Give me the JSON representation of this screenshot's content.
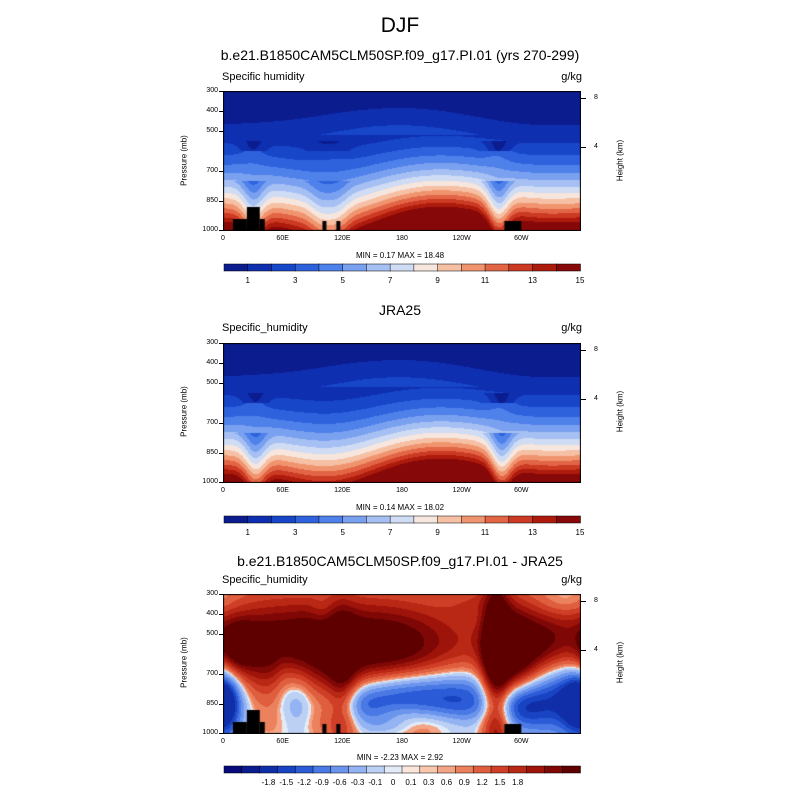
{
  "figure": {
    "title": "DJF"
  },
  "colors": {
    "palette_15": [
      "#0b1c8f",
      "#0e2fb0",
      "#1846c9",
      "#2e62dd",
      "#4f81ea",
      "#7aa0f0",
      "#a6c0f3",
      "#d0dcf3",
      "#f6e6de",
      "#f6c0a4",
      "#f0946f",
      "#e26546",
      "#cc3a23",
      "#ad1b0d",
      "#870808"
    ],
    "palette_20": [
      "#070a78",
      "#0b1c8f",
      "#0f2ea8",
      "#1843c2",
      "#2b5bd6",
      "#4a78e4",
      "#6b95ed",
      "#93b3f2",
      "#bcd0f4",
      "#e2ebf7",
      "#fbe6dc",
      "#f8c7ae",
      "#f4a585",
      "#ec815e",
      "#df5e3e",
      "#cf3e26",
      "#b92715",
      "#9e140a",
      "#7f0806",
      "#5e0000"
    ]
  },
  "chart_data": [
    {
      "type": "heatmap",
      "panel": "model",
      "title": "b.e21.B1850CAM5CLM50SP.f09_g17.PI.01 (yrs 270-299)",
      "variable_label": "Specific humidity",
      "units": "g/kg",
      "ylabel": "Pressure (mb)",
      "ylabel_right": "Height (km)",
      "y_ticks": [
        300,
        400,
        500,
        700,
        850,
        1000
      ],
      "y_ticks_right": [
        8,
        4
      ],
      "x_ticks": [
        "0",
        "60E",
        "120E",
        "180",
        "120W",
        "60W"
      ],
      "x_tick_values": [
        0,
        60,
        120,
        180,
        240,
        300
      ],
      "xlim": [
        0,
        360
      ],
      "ylim": [
        1000,
        300
      ],
      "stats": "MIN =   0.17   MAX =  18.48",
      "min": 0.17,
      "max": 18.48,
      "colorbar_labels": [
        "1",
        "3",
        "5",
        "7",
        "9",
        "11",
        "13",
        "15"
      ],
      "colorbar_levels": [
        1,
        2,
        3,
        4,
        5,
        6,
        7,
        8,
        9,
        10,
        11,
        12,
        13,
        14
      ],
      "topography": [
        [
          10,
          24,
          940
        ],
        [
          24,
          37,
          880
        ],
        [
          37,
          42,
          940
        ],
        [
          100,
          104,
          950
        ],
        [
          114,
          118,
          950
        ],
        [
          283,
          300,
          950
        ]
      ],
      "wet_features": [
        [
          30,
          0.7
        ],
        [
          98,
          0.3
        ],
        [
          115,
          0.3
        ],
        [
          277,
          0.9
        ]
      ]
    },
    {
      "type": "heatmap",
      "panel": "observations",
      "title": "JRA25",
      "variable_label": "Specific_humidity",
      "units": "g/kg",
      "ylabel": "Pressure (mb)",
      "ylabel_right": "Height (km)",
      "y_ticks": [
        300,
        400,
        500,
        700,
        850,
        1000
      ],
      "y_ticks_right": [
        8,
        4
      ],
      "x_ticks": [
        "0",
        "60E",
        "120E",
        "180",
        "120W",
        "60W"
      ],
      "x_tick_values": [
        0,
        60,
        120,
        180,
        240,
        300
      ],
      "xlim": [
        0,
        360
      ],
      "ylim": [
        1000,
        300
      ],
      "stats": "MIN =   0.14   MAX =  18.02",
      "min": 0.14,
      "max": 18.02,
      "colorbar_labels": [
        "1",
        "3",
        "5",
        "7",
        "9",
        "11",
        "13",
        "15"
      ],
      "colorbar_levels": [
        1,
        2,
        3,
        4,
        5,
        6,
        7,
        8,
        9,
        10,
        11,
        12,
        13,
        14
      ],
      "topography": [],
      "wet_features": [
        [
          32,
          0.7
        ],
        [
          280,
          0.9
        ]
      ]
    },
    {
      "type": "heatmap",
      "panel": "difference",
      "title": "b.e21.B1850CAM5CLM50SP.f09_g17.PI.01 - JRA25",
      "variable_label": "Specific_humidity",
      "units": "g/kg",
      "ylabel": "Pressure (mb)",
      "ylabel_right": "Height (km)",
      "y_ticks": [
        300,
        400,
        500,
        700,
        850,
        1000
      ],
      "y_ticks_right": [
        8,
        4
      ],
      "x_ticks": [
        "0",
        "60E",
        "120E",
        "180",
        "120W",
        "60W"
      ],
      "x_tick_values": [
        0,
        60,
        120,
        180,
        240,
        300
      ],
      "xlim": [
        0,
        360
      ],
      "ylim": [
        1000,
        300
      ],
      "stats": "MIN =  -2.23   MAX =   2.92",
      "min": -2.23,
      "max": 2.92,
      "colorbar_labels": [
        "-1.8",
        "-1.5",
        "-1.2",
        "-0.9",
        "-0.6",
        "-0.3",
        "-0.1",
        "0",
        "0.1",
        "0.3",
        "0.6",
        "0.9",
        "1.2",
        "1.5",
        "1.8"
      ],
      "colorbar_levels": [
        -1.8,
        -1.5,
        -1.2,
        -0.9,
        -0.6,
        -0.3,
        -0.1,
        0,
        0.1,
        0.3,
        0.6,
        0.9,
        1.2,
        1.5,
        1.8
      ],
      "topography": [
        [
          10,
          24,
          940
        ],
        [
          24,
          37,
          880
        ],
        [
          37,
          42,
          940
        ],
        [
          100,
          104,
          950
        ],
        [
          114,
          118,
          950
        ],
        [
          283,
          300,
          950
        ]
      ],
      "features": [
        [
          -60,
          20,
          550,
          40,
          150,
          0.9
        ],
        [
          -60,
          20,
          870,
          20,
          90,
          -1.6
        ],
        [
          75,
          110,
          560,
          80,
          160,
          1.6
        ],
        [
          130,
          110,
          540,
          80,
          170,
          1.1
        ],
        [
          120,
          10,
          760,
          3,
          250,
          1.0
        ],
        [
          75,
          12,
          800,
          8,
          150,
          -0.9
        ],
        [
          140,
          20,
          880,
          8,
          80,
          -1.0
        ],
        [
          180,
          35,
          800,
          22,
          90,
          -1.8
        ],
        [
          245,
          30,
          840,
          25,
          120,
          -1.5
        ],
        [
          275,
          10,
          720,
          3,
          420,
          1.9
        ],
        [
          290,
          18,
          600,
          15,
          150,
          1.3
        ],
        [
          200,
          80,
          950,
          20,
          60,
          0.7
        ],
        [
          340,
          25,
          800,
          18,
          150,
          -1.9
        ],
        [
          360,
          12,
          850,
          12,
          110,
          -2.2
        ],
        [
          345,
          20,
          330,
          10,
          60,
          -0.5
        ],
        [
          250,
          20,
          330,
          10,
          50,
          0.4
        ],
        [
          100,
          8,
          380,
          6,
          50,
          -0.3
        ],
        [
          175,
          25,
          600,
          40,
          150,
          0.3
        ],
        [
          330,
          15,
          550,
          25,
          100,
          0.5
        ],
        [
          15,
          12,
          560,
          10,
          80,
          1.2
        ],
        [
          60,
          8,
          700,
          10,
          120,
          -0.4
        ],
        [
          165,
          20,
          960,
          10,
          40,
          -0.6
        ]
      ]
    }
  ]
}
